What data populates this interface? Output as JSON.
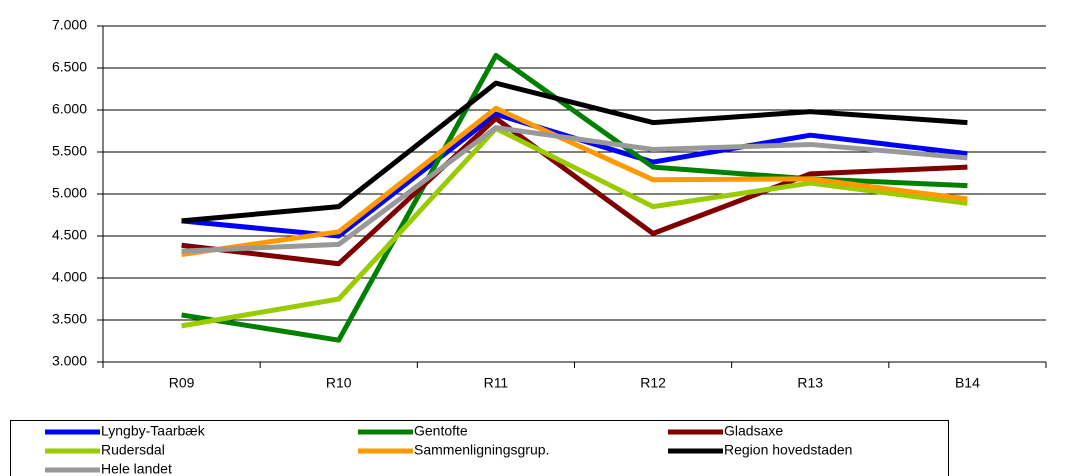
{
  "chart_data": {
    "type": "line",
    "categories": [
      "R09",
      "R10",
      "R11",
      "R12",
      "R13",
      "B14"
    ],
    "series": [
      {
        "name": "Lyngby-Taarbæk",
        "color": "#0000ff",
        "values": [
          4680,
          4500,
          5950,
          5380,
          5700,
          5480
        ]
      },
      {
        "name": "Gentofte",
        "color": "#008000",
        "values": [
          3560,
          3260,
          6650,
          5320,
          5180,
          5100
        ]
      },
      {
        "name": "Gladsaxe",
        "color": "#800000",
        "values": [
          4390,
          4170,
          5900,
          4530,
          5240,
          5320
        ]
      },
      {
        "name": "Rudersdal",
        "color": "#99cc00",
        "values": [
          3430,
          3750,
          5780,
          4850,
          5130,
          4890
        ]
      },
      {
        "name": "Sammenligningsgrup.",
        "color": "#ff9900",
        "values": [
          4280,
          4550,
          6020,
          5170,
          5180,
          4940
        ]
      },
      {
        "name": "Region hovedstaden",
        "color": "#000000",
        "values": [
          4680,
          4850,
          6320,
          5850,
          5980,
          5850
        ]
      },
      {
        "name": "Hele landet",
        "color": "#999999",
        "values": [
          4320,
          4400,
          5790,
          5530,
          5590,
          5430
        ]
      }
    ],
    "ylim": [
      3000,
      7000
    ],
    "yticks": [
      {
        "value": 3000,
        "label": "3.000"
      },
      {
        "value": 3500,
        "label": "3.500"
      },
      {
        "value": 4000,
        "label": "4.000"
      },
      {
        "value": 4500,
        "label": "4.500"
      },
      {
        "value": 5000,
        "label": "5.000"
      },
      {
        "value": 5500,
        "label": "5.500"
      },
      {
        "value": 6000,
        "label": "6.000"
      },
      {
        "value": 6500,
        "label": "6.500"
      },
      {
        "value": 7000,
        "label": "7.000"
      }
    ],
    "grid": true,
    "legend": "bottom"
  }
}
